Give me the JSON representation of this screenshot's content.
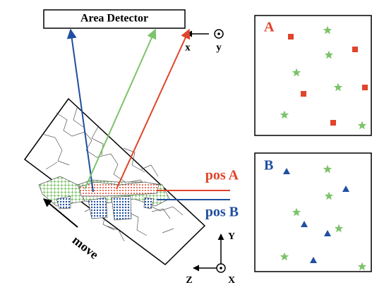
{
  "detector": {
    "label": "Area Detector"
  },
  "top_axes": {
    "x": "x",
    "y": "y"
  },
  "sample": {
    "pos_a": "pos A",
    "pos_b": "pos B",
    "move": "move"
  },
  "bottom_axes": {
    "y": "Y",
    "z": "Z",
    "x": "X"
  },
  "panels": [
    {
      "label": "A"
    },
    {
      "label": "B"
    }
  ]
}
